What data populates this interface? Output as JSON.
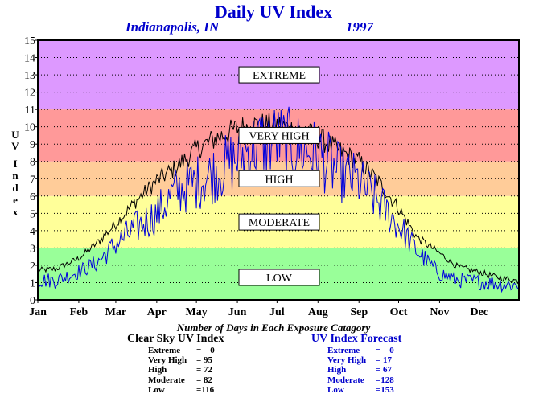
{
  "chart_data": {
    "type": "line",
    "title": "Daily UV Index",
    "location": "Indianapolis, IN",
    "year": "1997",
    "ylabel": "UV Index",
    "ylim": [
      0,
      15
    ],
    "yticks": [
      "0",
      "1",
      "2",
      "3",
      "4",
      "5",
      "6",
      "7",
      "8",
      "9",
      "10",
      "11",
      "12",
      "13",
      "14",
      "15"
    ],
    "xticks": [
      "Jan",
      "Feb",
      "Mar",
      "Apr",
      "May",
      "Jun",
      "Jul",
      "Aug",
      "Sep",
      "Oct",
      "Nov",
      "Dec"
    ],
    "x_range_days": [
      1,
      365
    ],
    "grid": true,
    "bands": [
      {
        "label": "LOW",
        "from": 0,
        "to": 3,
        "color": "#99ff99",
        "label_y": 1.3
      },
      {
        "label": "MODERATE",
        "from": 3,
        "to": 6,
        "color": "#ffff99",
        "label_y": 4.5
      },
      {
        "label": "HIGH",
        "from": 6,
        "to": 8,
        "color": "#ffcc99",
        "label_y": 7.0
      },
      {
        "label": "VERY HIGH",
        "from": 8,
        "to": 11,
        "color": "#ff9999",
        "label_y": 9.5
      },
      {
        "label": "EXTREME",
        "from": 11,
        "to": 15,
        "color": "#dd99ff",
        "label_y": 13.0
      }
    ],
    "series": [
      {
        "name": "Clear Sky UV Index",
        "color": "#000000",
        "x": [
          1,
          15,
          32,
          46,
          60,
          74,
          91,
          105,
          121,
          135,
          152,
          166,
          182,
          196,
          213,
          227,
          244,
          258,
          274,
          288,
          305,
          319,
          335,
          349,
          365
        ],
        "y": [
          1.7,
          1.8,
          2.4,
          3.3,
          4.4,
          5.6,
          6.9,
          7.6,
          8.7,
          9.3,
          9.9,
          10.1,
          10.1,
          9.8,
          9.4,
          8.7,
          8.0,
          6.9,
          5.3,
          3.6,
          2.7,
          1.9,
          1.6,
          1.3,
          1.1
        ]
      },
      {
        "name": "UV Index Forecast",
        "color": "#0000dd",
        "x": [
          1,
          15,
          32,
          46,
          60,
          74,
          91,
          105,
          121,
          135,
          152,
          166,
          182,
          196,
          213,
          227,
          244,
          258,
          274,
          288,
          305,
          319,
          335,
          349,
          365
        ],
        "y": [
          1.0,
          1.0,
          1.5,
          2.0,
          3.0,
          3.8,
          4.6,
          5.8,
          6.3,
          6.8,
          7.6,
          8.3,
          8.6,
          8.2,
          7.8,
          6.9,
          6.3,
          5.3,
          4.0,
          2.6,
          1.4,
          1.0,
          0.9,
          0.8,
          0.7
        ]
      }
    ]
  },
  "summary": {
    "caption": "Number of Days in Each Exposure Catagory",
    "clear_sky": {
      "heading": "Clear Sky UV Index",
      "rows": [
        {
          "label": "Extreme",
          "value": "=    0"
        },
        {
          "label": "Very High",
          "value": "= 95"
        },
        {
          "label": "High",
          "value": "= 72"
        },
        {
          "label": "Moderate",
          "value": "= 82"
        },
        {
          "label": "Low",
          "value": "=116"
        }
      ]
    },
    "forecast": {
      "heading": "UV Index Forecast",
      "rows": [
        {
          "label": "Extreme",
          "value": "=    0"
        },
        {
          "label": "Very High",
          "value": "= 17"
        },
        {
          "label": "High",
          "value": "= 67"
        },
        {
          "label": "Moderate",
          "value": "=128"
        },
        {
          "label": "Low",
          "value": "=153"
        }
      ]
    }
  }
}
